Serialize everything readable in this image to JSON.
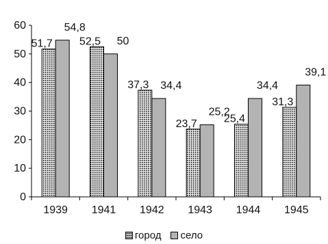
{
  "chart_data": {
    "type": "bar",
    "categories": [
      "1939",
      "1941",
      "1942",
      "1943",
      "1944",
      "1945"
    ],
    "series": [
      {
        "name": "город",
        "values": [
          51.7,
          52.5,
          37.3,
          23.7,
          25.4,
          31.3
        ],
        "labels": [
          "51,7",
          "52,5",
          "37,3",
          "23,7",
          "25,4",
          "31,3"
        ]
      },
      {
        "name": "село",
        "values": [
          54.8,
          50,
          34.4,
          25.2,
          34.4,
          39.1
        ],
        "labels": [
          "54,8",
          "50",
          "34,4",
          "25,2",
          "34,4",
          "39,1"
        ]
      }
    ],
    "yticks": [
      "0",
      "10",
      "20",
      "30",
      "40",
      "50",
      "60"
    ],
    "ylim": [
      0,
      60
    ],
    "grid": false,
    "legend": "bottom",
    "colors": {
      "gorod_fill": "#e8e8e8",
      "gorod_dots": "#000000",
      "selo_fill": "#b3b3b3",
      "outline": "#000000"
    }
  }
}
